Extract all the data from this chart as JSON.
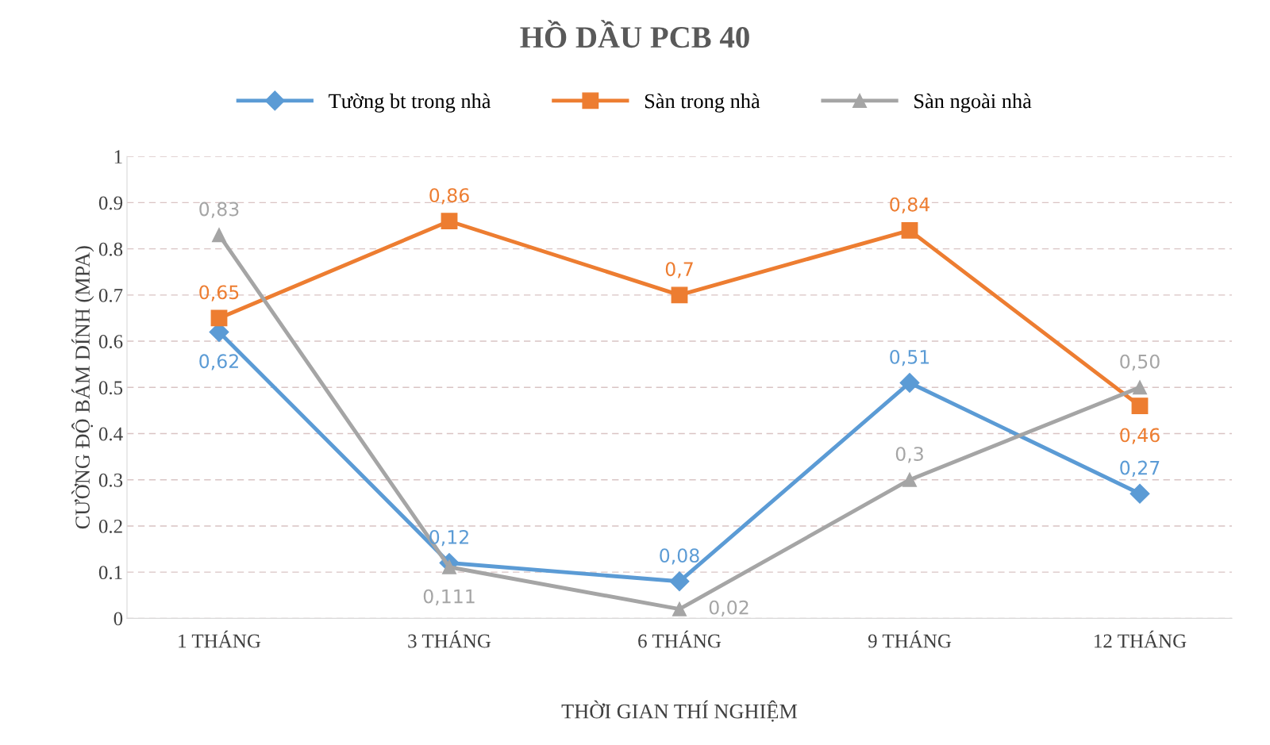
{
  "chart_data": {
    "type": "line",
    "title": "HỒ DẦU PCB 40",
    "xlabel": "THỜI GIAN THÍ NGHIỆM",
    "ylabel": "CƯỜNG ĐỘ BÁM DÍNH (MPA)",
    "categories": [
      "1 THÁNG",
      "3 THÁNG",
      "6 THÁNG",
      "9 THÁNG",
      "12 THÁNG"
    ],
    "series": [
      {
        "name": "Tường bt trong nhà",
        "color": "#5b9bd5",
        "marker": "diamond",
        "values": [
          0.62,
          0.12,
          0.08,
          0.51,
          0.27
        ],
        "value_labels": [
          "0,62",
          "0,12",
          "0,08",
          "0,51",
          "0,27"
        ]
      },
      {
        "name": "Sàn trong nhà",
        "color": "#ed7d31",
        "marker": "square",
        "values": [
          0.65,
          0.86,
          0.7,
          0.84,
          0.46
        ],
        "value_labels": [
          "0,65",
          "0,86",
          "0,7",
          "0,84",
          "0,46"
        ]
      },
      {
        "name": "Sàn ngoài nhà",
        "color": "#a5a5a5",
        "marker": "triangle",
        "values": [
          0.83,
          0.111,
          0.02,
          0.3,
          0.5
        ],
        "value_labels": [
          "0,83",
          "0,111",
          "0,02",
          "0,3",
          "0,50"
        ]
      }
    ],
    "ylim": [
      0,
      1
    ],
    "yticks": [
      0,
      0.1,
      0.2,
      0.3,
      0.4,
      0.5,
      0.6,
      0.7,
      0.8,
      0.9,
      1
    ],
    "grid": "y",
    "legend": "top",
    "line_style": "solid"
  }
}
